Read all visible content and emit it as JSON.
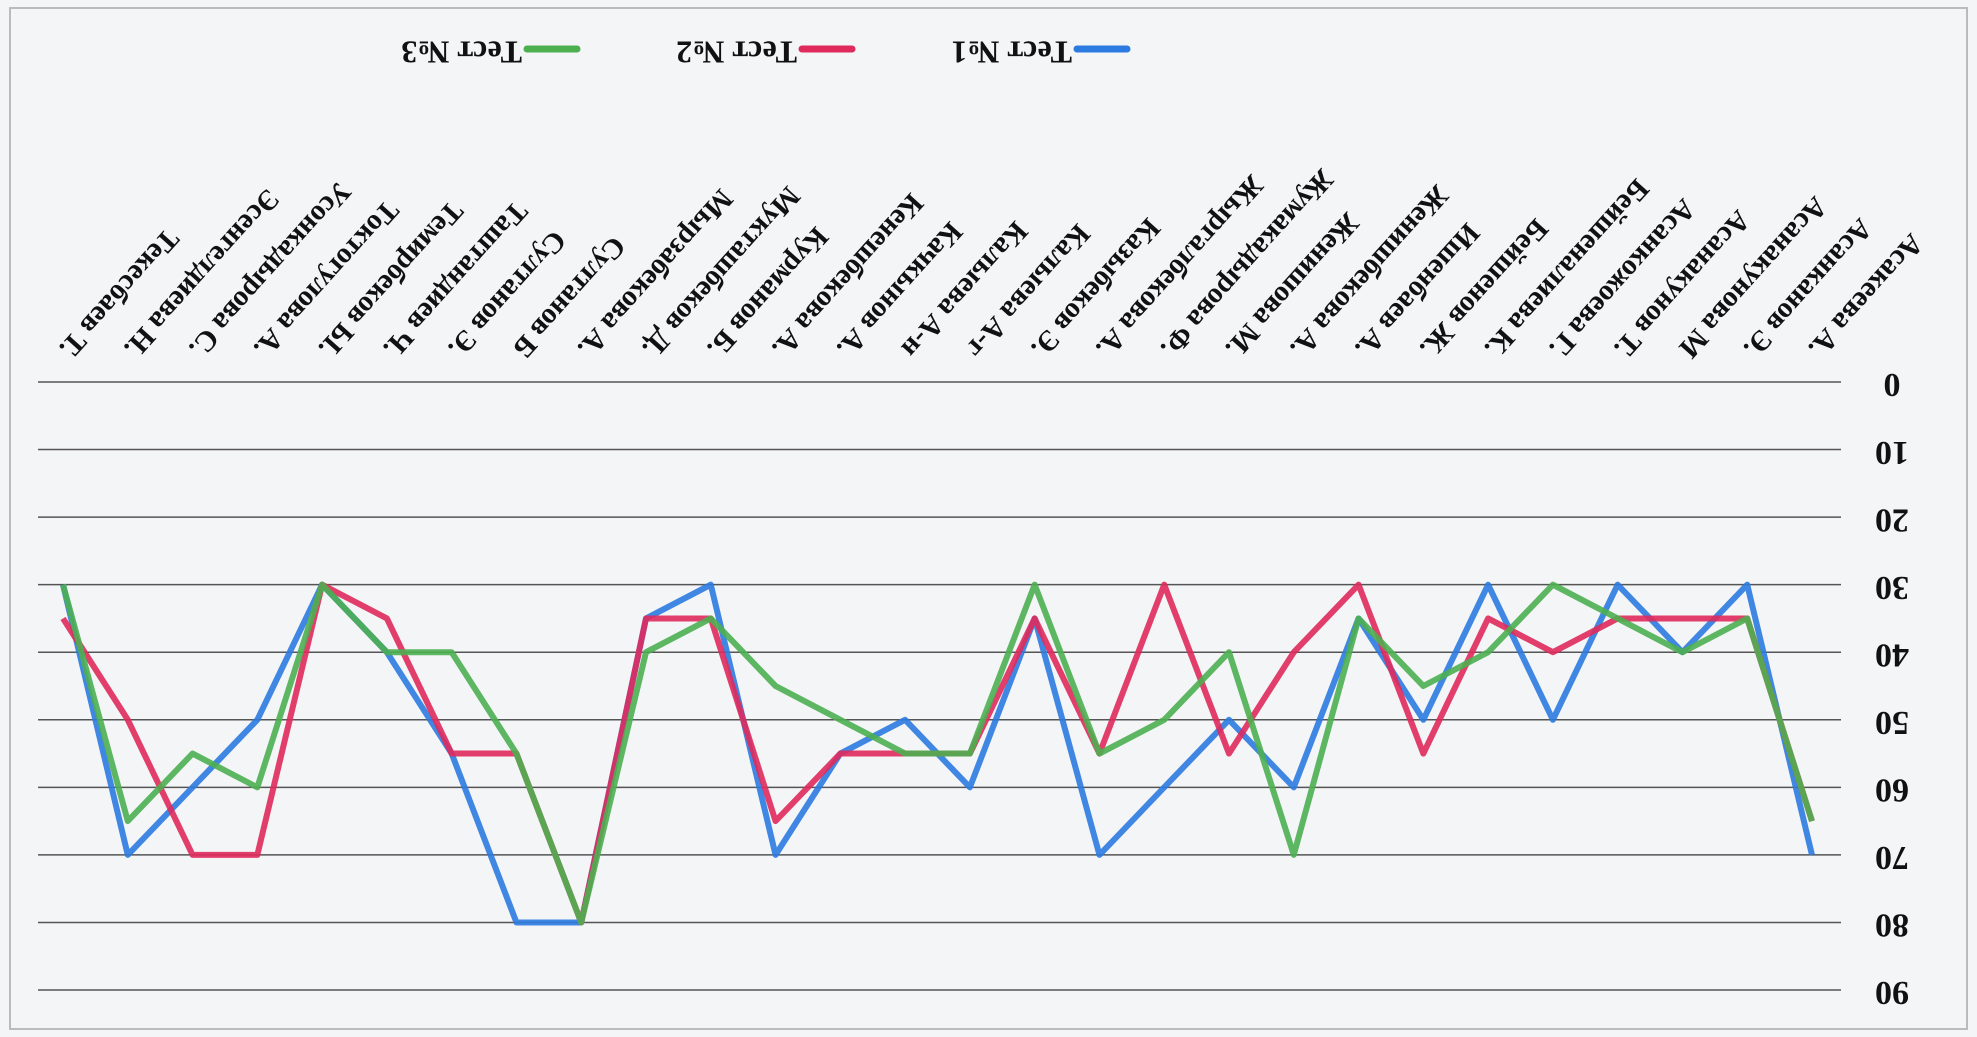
{
  "chart_data": {
    "type": "line",
    "categories": [
      "Асакеева А.",
      "Асанканов Э.",
      "Асанакунова М",
      "Асанакунов Т.",
      "Асанкожоева Г.",
      "Бейшеналиева К.",
      "Бейшенов Ж.",
      "Ишенбаев А.",
      "Женишбекова А.",
      "Женишова М.",
      "Жумакадырова Ф.",
      "Жыргалбекова А.",
      "Казыбеков Э.",
      "Калыева А-г",
      "Калыева А-н",
      "Качкынов А.",
      "Кенешбекова А.",
      "Курманов Б.",
      "Мукташбеков Д.",
      "Мырзабекова А.",
      "Султанов Б",
      "Султанов Э.",
      "Таштандиев Ч.",
      "Темирбеков Ы.",
      "Токтогулова А.",
      "Усонкадырова С.",
      "Эсенгелдиева Н.",
      "Текесбаев Т."
    ],
    "series": [
      {
        "name": "Тест №1",
        "color": "#2b7be0",
        "values": [
          70,
          30,
          40,
          30,
          50,
          30,
          50,
          35,
          60,
          50,
          60,
          70,
          35,
          60,
          50,
          55,
          70,
          30,
          35,
          80,
          80,
          55,
          40,
          30,
          50,
          60,
          70,
          30
        ]
      },
      {
        "name": "Тест №2",
        "color": "#e02a5c",
        "values": [
          65,
          35,
          35,
          35,
          40,
          35,
          55,
          30,
          40,
          55,
          30,
          55,
          35,
          55,
          55,
          55,
          65,
          35,
          35,
          80,
          55,
          55,
          35,
          30,
          70,
          70,
          50,
          35
        ]
      },
      {
        "name": "Тест №3",
        "color": "#4caf50",
        "values": [
          65,
          35,
          40,
          35,
          30,
          40,
          45,
          35,
          70,
          40,
          50,
          55,
          30,
          55,
          55,
          50,
          45,
          35,
          40,
          80,
          55,
          40,
          40,
          30,
          60,
          55,
          65,
          30
        ]
      }
    ],
    "ylim": [
      0,
      90
    ],
    "yticks": [
      0,
      10,
      20,
      30,
      40,
      50,
      60,
      70,
      80,
      90
    ],
    "grid": true,
    "legend": "bottom"
  }
}
